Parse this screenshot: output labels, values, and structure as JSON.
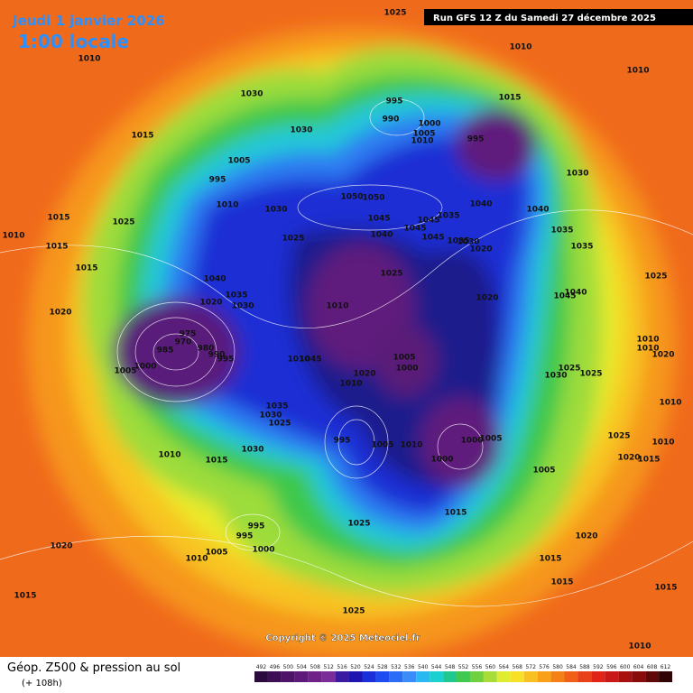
{
  "header": {
    "date": "Jeudi 1 janvier 2026",
    "time": "1:00 locale",
    "run": "Run GFS 12 Z du Samedi 27 décembre 2025"
  },
  "copyright": "Copyright © 2025 Meteociel.fr",
  "legend": {
    "title": "Géop. Z500 & pression au sol",
    "lead": "(+ 108h)",
    "scale": [
      492,
      496,
      500,
      504,
      508,
      512,
      516,
      520,
      524,
      528,
      532,
      536,
      540,
      544,
      548,
      552,
      556,
      560,
      564,
      568,
      572,
      576,
      580,
      584,
      588,
      592,
      596,
      600,
      604,
      608,
      612
    ],
    "colors": [
      "#2b0a3d",
      "#3d0e55",
      "#4e1468",
      "#5e1a78",
      "#6e2288",
      "#7a2c98",
      "#3a1aa0",
      "#1e14b0",
      "#1a2fd8",
      "#1e4cf0",
      "#2a6cf6",
      "#3a8cf8",
      "#2ab8f0",
      "#1ad0d0",
      "#20c890",
      "#40c850",
      "#70d040",
      "#a8dc38",
      "#e0ec30",
      "#f8e028",
      "#f8c020",
      "#f8a018",
      "#f48018",
      "#f06018",
      "#e84018",
      "#e02418",
      "#c81818",
      "#a81010",
      "#880c0c",
      "#600808",
      "#300404"
    ]
  },
  "isobar_labels": [
    1025,
    1010,
    1010,
    1010,
    1030,
    1015,
    995,
    990,
    1000,
    1005,
    1010,
    995,
    1015,
    1030,
    1005,
    995,
    1010,
    1030,
    1050,
    1050,
    1045,
    1045,
    1035,
    1040,
    1040,
    1030,
    1035,
    1035,
    1040,
    1045,
    1045,
    1035,
    1030,
    1020,
    1025,
    1015,
    1025,
    1010,
    1015,
    1015,
    1025,
    1020,
    1045,
    1040,
    1025,
    1020,
    1040,
    1035,
    1020,
    1030,
    1010,
    975,
    970,
    985,
    980,
    990,
    995,
    1005,
    1000,
    1045,
    1010,
    1005,
    1000,
    1020,
    1010,
    1010,
    1010,
    1020,
    1030,
    1025,
    1025,
    1010,
    1035,
    1030,
    1025,
    995,
    1005,
    1010,
    1000,
    1005,
    1000,
    1025,
    1010,
    1020,
    1015,
    1030,
    1010,
    1015,
    1005,
    1015,
    1025,
    995,
    995,
    1000,
    1005,
    1010,
    1020,
    1020,
    1015,
    1015,
    1015,
    1015,
    1025,
    1010
  ]
}
